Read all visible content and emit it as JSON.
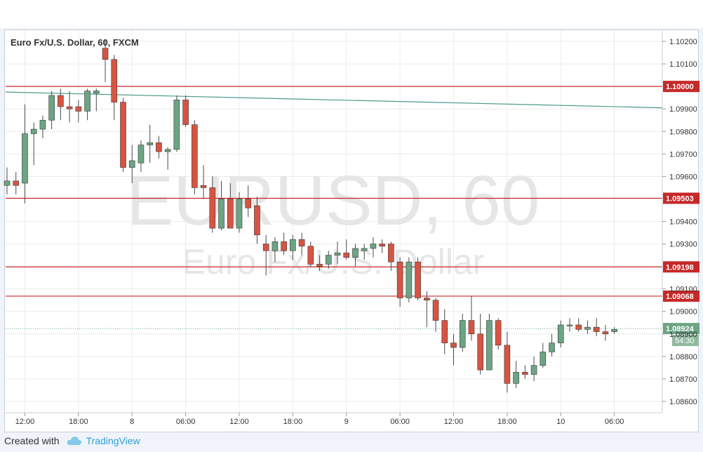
{
  "chart_data": {
    "type": "candlestick",
    "title": "Euro Fx/U.S. Dollar, 60, FXCM",
    "watermark_symbol": "EURUSD, 60",
    "watermark_name": "Euro Fx/U.S. Dollar",
    "ylim": [
      1.0855,
      1.1025
    ],
    "y_ticks": [
      "1.08600",
      "1.08700",
      "1.08800",
      "1.08900",
      "1.09000",
      "1.09100",
      "1.09300",
      "1.09400",
      "1.09600",
      "1.09700",
      "1.09800",
      "1.09900",
      "1.10100",
      "1.10200"
    ],
    "x_ticks": [
      {
        "index": 2,
        "label": "12:00"
      },
      {
        "index": 8,
        "label": "18:00"
      },
      {
        "index": 14,
        "label": "8"
      },
      {
        "index": 20,
        "label": "06:00"
      },
      {
        "index": 26,
        "label": "12:00"
      },
      {
        "index": 32,
        "label": "18:00"
      },
      {
        "index": 38,
        "label": "9"
      },
      {
        "index": 44,
        "label": "06:00"
      },
      {
        "index": 50,
        "label": "12:00"
      },
      {
        "index": 56,
        "label": "18:00"
      },
      {
        "index": 62,
        "label": "10"
      },
      {
        "index": 68,
        "label": "06:00"
      }
    ],
    "horizontal_levels": [
      {
        "value": 1.1,
        "label": "1.10000"
      },
      {
        "value": 1.09503,
        "label": "1.09503"
      },
      {
        "value": 1.09198,
        "label": "1.09198"
      },
      {
        "value": 1.09068,
        "label": "1.09068"
      }
    ],
    "current_price": {
      "value": 1.08924,
      "label": "1.08924",
      "countdown": "54:30"
    },
    "trendline": {
      "from": [
        0,
        1.09975
      ],
      "to": [
        73,
        1.09905
      ]
    },
    "candles": [
      {
        "o": 1.0956,
        "h": 1.0964,
        "l": 1.0952,
        "c": 1.0958
      },
      {
        "o": 1.0958,
        "h": 1.0962,
        "l": 1.0952,
        "c": 1.0956
      },
      {
        "o": 1.0957,
        "h": 1.0992,
        "l": 1.0948,
        "c": 1.0979
      },
      {
        "o": 1.0979,
        "h": 1.0984,
        "l": 1.0965,
        "c": 1.0981
      },
      {
        "o": 1.0981,
        "h": 1.0987,
        "l": 1.0977,
        "c": 1.0985
      },
      {
        "o": 1.0985,
        "h": 1.0998,
        "l": 1.0981,
        "c": 1.0996
      },
      {
        "o": 1.0996,
        "h": 1.0999,
        "l": 1.0985,
        "c": 1.0991
      },
      {
        "o": 1.0991,
        "h": 1.0998,
        "l": 1.0984,
        "c": 1.099
      },
      {
        "o": 1.0991,
        "h": 1.0994,
        "l": 1.0984,
        "c": 1.0989
      },
      {
        "o": 1.0989,
        "h": 1.0999,
        "l": 1.0985,
        "c": 1.0998
      },
      {
        "o": 1.0997,
        "h": 1.0999,
        "l": 1.0989,
        "c": 1.0998
      },
      {
        "o": 1.1017,
        "h": 1.1021,
        "l": 1.1002,
        "c": 1.1012
      },
      {
        "o": 1.1012,
        "h": 1.1014,
        "l": 1.0985,
        "c": 1.0993
      },
      {
        "o": 1.0993,
        "h": 1.0995,
        "l": 1.0962,
        "c": 1.0964
      },
      {
        "o": 1.0964,
        "h": 1.0974,
        "l": 1.0957,
        "c": 1.0967
      },
      {
        "o": 1.0966,
        "h": 1.0976,
        "l": 1.0962,
        "c": 1.0974
      },
      {
        "o": 1.0974,
        "h": 1.0983,
        "l": 1.0966,
        "c": 1.0975
      },
      {
        "o": 1.0975,
        "h": 1.0978,
        "l": 1.0968,
        "c": 1.0971
      },
      {
        "o": 1.0971,
        "h": 1.0973,
        "l": 1.0963,
        "c": 1.0972
      },
      {
        "o": 1.0972,
        "h": 1.0996,
        "l": 1.0971,
        "c": 1.0994
      },
      {
        "o": 1.0994,
        "h": 1.0996,
        "l": 1.0982,
        "c": 1.0983
      },
      {
        "o": 1.0983,
        "h": 1.0985,
        "l": 1.0952,
        "c": 1.0955
      },
      {
        "o": 1.0956,
        "h": 1.0965,
        "l": 1.095,
        "c": 1.0955
      },
      {
        "o": 1.0955,
        "h": 1.096,
        "l": 1.0935,
        "c": 1.0937
      },
      {
        "o": 1.0937,
        "h": 1.0958,
        "l": 1.0936,
        "c": 1.095
      },
      {
        "o": 1.095,
        "h": 1.0957,
        "l": 1.0937,
        "c": 1.0937
      },
      {
        "o": 1.0937,
        "h": 1.0953,
        "l": 1.0935,
        "c": 1.095
      },
      {
        "o": 1.095,
        "h": 1.0956,
        "l": 1.0942,
        "c": 1.0946
      },
      {
        "o": 1.0947,
        "h": 1.0951,
        "l": 1.093,
        "c": 1.0934
      },
      {
        "o": 1.093,
        "h": 1.0934,
        "l": 1.0916,
        "c": 1.0927
      },
      {
        "o": 1.0927,
        "h": 1.0933,
        "l": 1.0922,
        "c": 1.0931
      },
      {
        "o": 1.0931,
        "h": 1.0935,
        "l": 1.0925,
        "c": 1.0927
      },
      {
        "o": 1.0927,
        "h": 1.0934,
        "l": 1.0923,
        "c": 1.0932
      },
      {
        "o": 1.0932,
        "h": 1.0935,
        "l": 1.0925,
        "c": 1.0929
      },
      {
        "o": 1.0929,
        "h": 1.0931,
        "l": 1.092,
        "c": 1.0921
      },
      {
        "o": 1.0921,
        "h": 1.0925,
        "l": 1.0918,
        "c": 1.092
      },
      {
        "o": 1.0921,
        "h": 1.0927,
        "l": 1.0919,
        "c": 1.0925
      },
      {
        "o": 1.0925,
        "h": 1.0931,
        "l": 1.0921,
        "c": 1.0926
      },
      {
        "o": 1.0926,
        "h": 1.0932,
        "l": 1.0923,
        "c": 1.0924
      },
      {
        "o": 1.0924,
        "h": 1.093,
        "l": 1.092,
        "c": 1.0928
      },
      {
        "o": 1.0927,
        "h": 1.093,
        "l": 1.0923,
        "c": 1.0928
      },
      {
        "o": 1.0928,
        "h": 1.0933,
        "l": 1.0924,
        "c": 1.093
      },
      {
        "o": 1.093,
        "h": 1.0932,
        "l": 1.0926,
        "c": 1.0929
      },
      {
        "o": 1.093,
        "h": 1.0931,
        "l": 1.0918,
        "c": 1.0922
      },
      {
        "o": 1.0922,
        "h": 1.0924,
        "l": 1.0902,
        "c": 1.0906
      },
      {
        "o": 1.0906,
        "h": 1.0924,
        "l": 1.0904,
        "c": 1.0922
      },
      {
        "o": 1.0922,
        "h": 1.0924,
        "l": 1.0905,
        "c": 1.0906
      },
      {
        "o": 1.0906,
        "h": 1.0909,
        "l": 1.0893,
        "c": 1.0905
      },
      {
        "o": 1.0905,
        "h": 1.0906,
        "l": 1.0891,
        "c": 1.0896
      },
      {
        "o": 1.0896,
        "h": 1.0901,
        "l": 1.0881,
        "c": 1.0886
      },
      {
        "o": 1.0886,
        "h": 1.089,
        "l": 1.0876,
        "c": 1.0884
      },
      {
        "o": 1.0884,
        "h": 1.0899,
        "l": 1.0882,
        "c": 1.0896
      },
      {
        "o": 1.0896,
        "h": 1.0907,
        "l": 1.0887,
        "c": 1.089
      },
      {
        "o": 1.089,
        "h": 1.0899,
        "l": 1.0872,
        "c": 1.0874
      },
      {
        "o": 1.0874,
        "h": 1.0899,
        "l": 1.0874,
        "c": 1.0896
      },
      {
        "o": 1.0896,
        "h": 1.0897,
        "l": 1.0883,
        "c": 1.0885
      },
      {
        "o": 1.0885,
        "h": 1.0891,
        "l": 1.0864,
        "c": 1.0868
      },
      {
        "o": 1.0868,
        "h": 1.0878,
        "l": 1.0866,
        "c": 1.0873
      },
      {
        "o": 1.0873,
        "h": 1.0876,
        "l": 1.087,
        "c": 1.0872
      },
      {
        "o": 1.0872,
        "h": 1.088,
        "l": 1.0869,
        "c": 1.0876
      },
      {
        "o": 1.0876,
        "h": 1.0886,
        "l": 1.0875,
        "c": 1.0882
      },
      {
        "o": 1.0882,
        "h": 1.089,
        "l": 1.088,
        "c": 1.0886
      },
      {
        "o": 1.0886,
        "h": 1.0896,
        "l": 1.0884,
        "c": 1.0894
      },
      {
        "o": 1.0894,
        "h": 1.0897,
        "l": 1.0891,
        "c": 1.0894
      },
      {
        "o": 1.0894,
        "h": 1.0897,
        "l": 1.0891,
        "c": 1.0892
      },
      {
        "o": 1.0892,
        "h": 1.0896,
        "l": 1.089,
        "c": 1.0893
      },
      {
        "o": 1.0893,
        "h": 1.0897,
        "l": 1.0889,
        "c": 1.0891
      },
      {
        "o": 1.0891,
        "h": 1.0894,
        "l": 1.0887,
        "c": 1.089
      },
      {
        "o": 1.0891,
        "h": 1.0893,
        "l": 1.089,
        "c": 1.0892
      }
    ]
  },
  "colors": {
    "bull": "#6ba583",
    "bear": "#d75442",
    "wick": "#4a4a4a",
    "level": "#c62828",
    "trendline": "#4a9a8c",
    "current": "#6ba583",
    "grid": "#ececec",
    "watermark": "#e6e6e6"
  },
  "footer": {
    "created_with": "Created with",
    "brand": "TradingView",
    "logo_icon": "cloud-icon"
  }
}
